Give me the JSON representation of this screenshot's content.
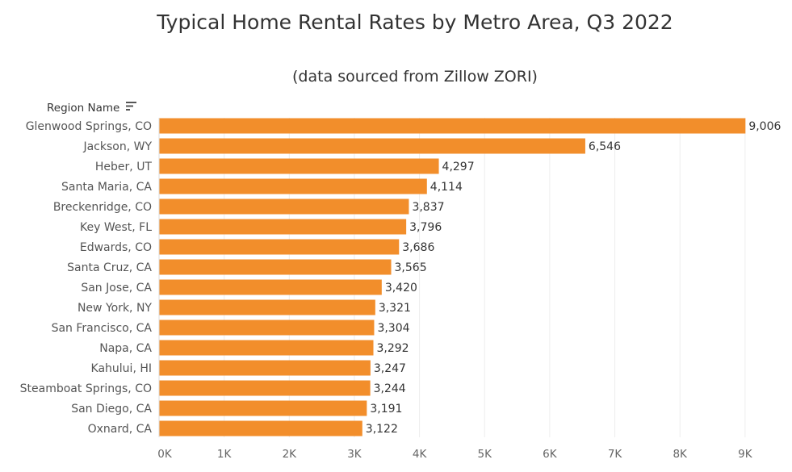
{
  "chart_data": {
    "type": "bar",
    "orientation": "horizontal",
    "title": "Typical Home Rental Rates by Metro Area, Q3 2022",
    "subtitle": "(data sourced from Zillow ZORI)",
    "row_header": "Region Name",
    "categories": [
      "Glenwood Springs, CO",
      "Jackson, WY",
      "Heber, UT",
      "Santa Maria, CA",
      "Breckenridge, CO",
      "Key West, FL",
      "Edwards, CO",
      "Santa Cruz, CA",
      "San Jose, CA",
      "New York, NY",
      "San Francisco, CA",
      "Napa, CA",
      "Kahului, HI",
      "Steamboat Springs, CO",
      "San Diego, CA",
      "Oxnard, CA"
    ],
    "values": [
      9006,
      6546,
      4297,
      4114,
      3837,
      3796,
      3686,
      3565,
      3420,
      3321,
      3304,
      3292,
      3247,
      3244,
      3191,
      3122
    ],
    "value_labels": [
      "9,006",
      "6,546",
      "4,297",
      "4,114",
      "3,837",
      "3,796",
      "3,686",
      "3,565",
      "3,420",
      "3,321",
      "3,304",
      "3,292",
      "3,247",
      "3,244",
      "3,191",
      "3,122"
    ],
    "x_ticks": [
      0,
      1000,
      2000,
      3000,
      4000,
      5000,
      6000,
      7000,
      8000,
      9000
    ],
    "x_tick_labels": [
      "0K",
      "1K",
      "2K",
      "3K",
      "4K",
      "5K",
      "6K",
      "7K",
      "8K",
      "9K"
    ],
    "xlim": [
      0,
      9700
    ],
    "xlabel": "",
    "ylabel": "Region Name",
    "grid": true,
    "sort": "descending",
    "bar_color": "#f28e2b"
  }
}
